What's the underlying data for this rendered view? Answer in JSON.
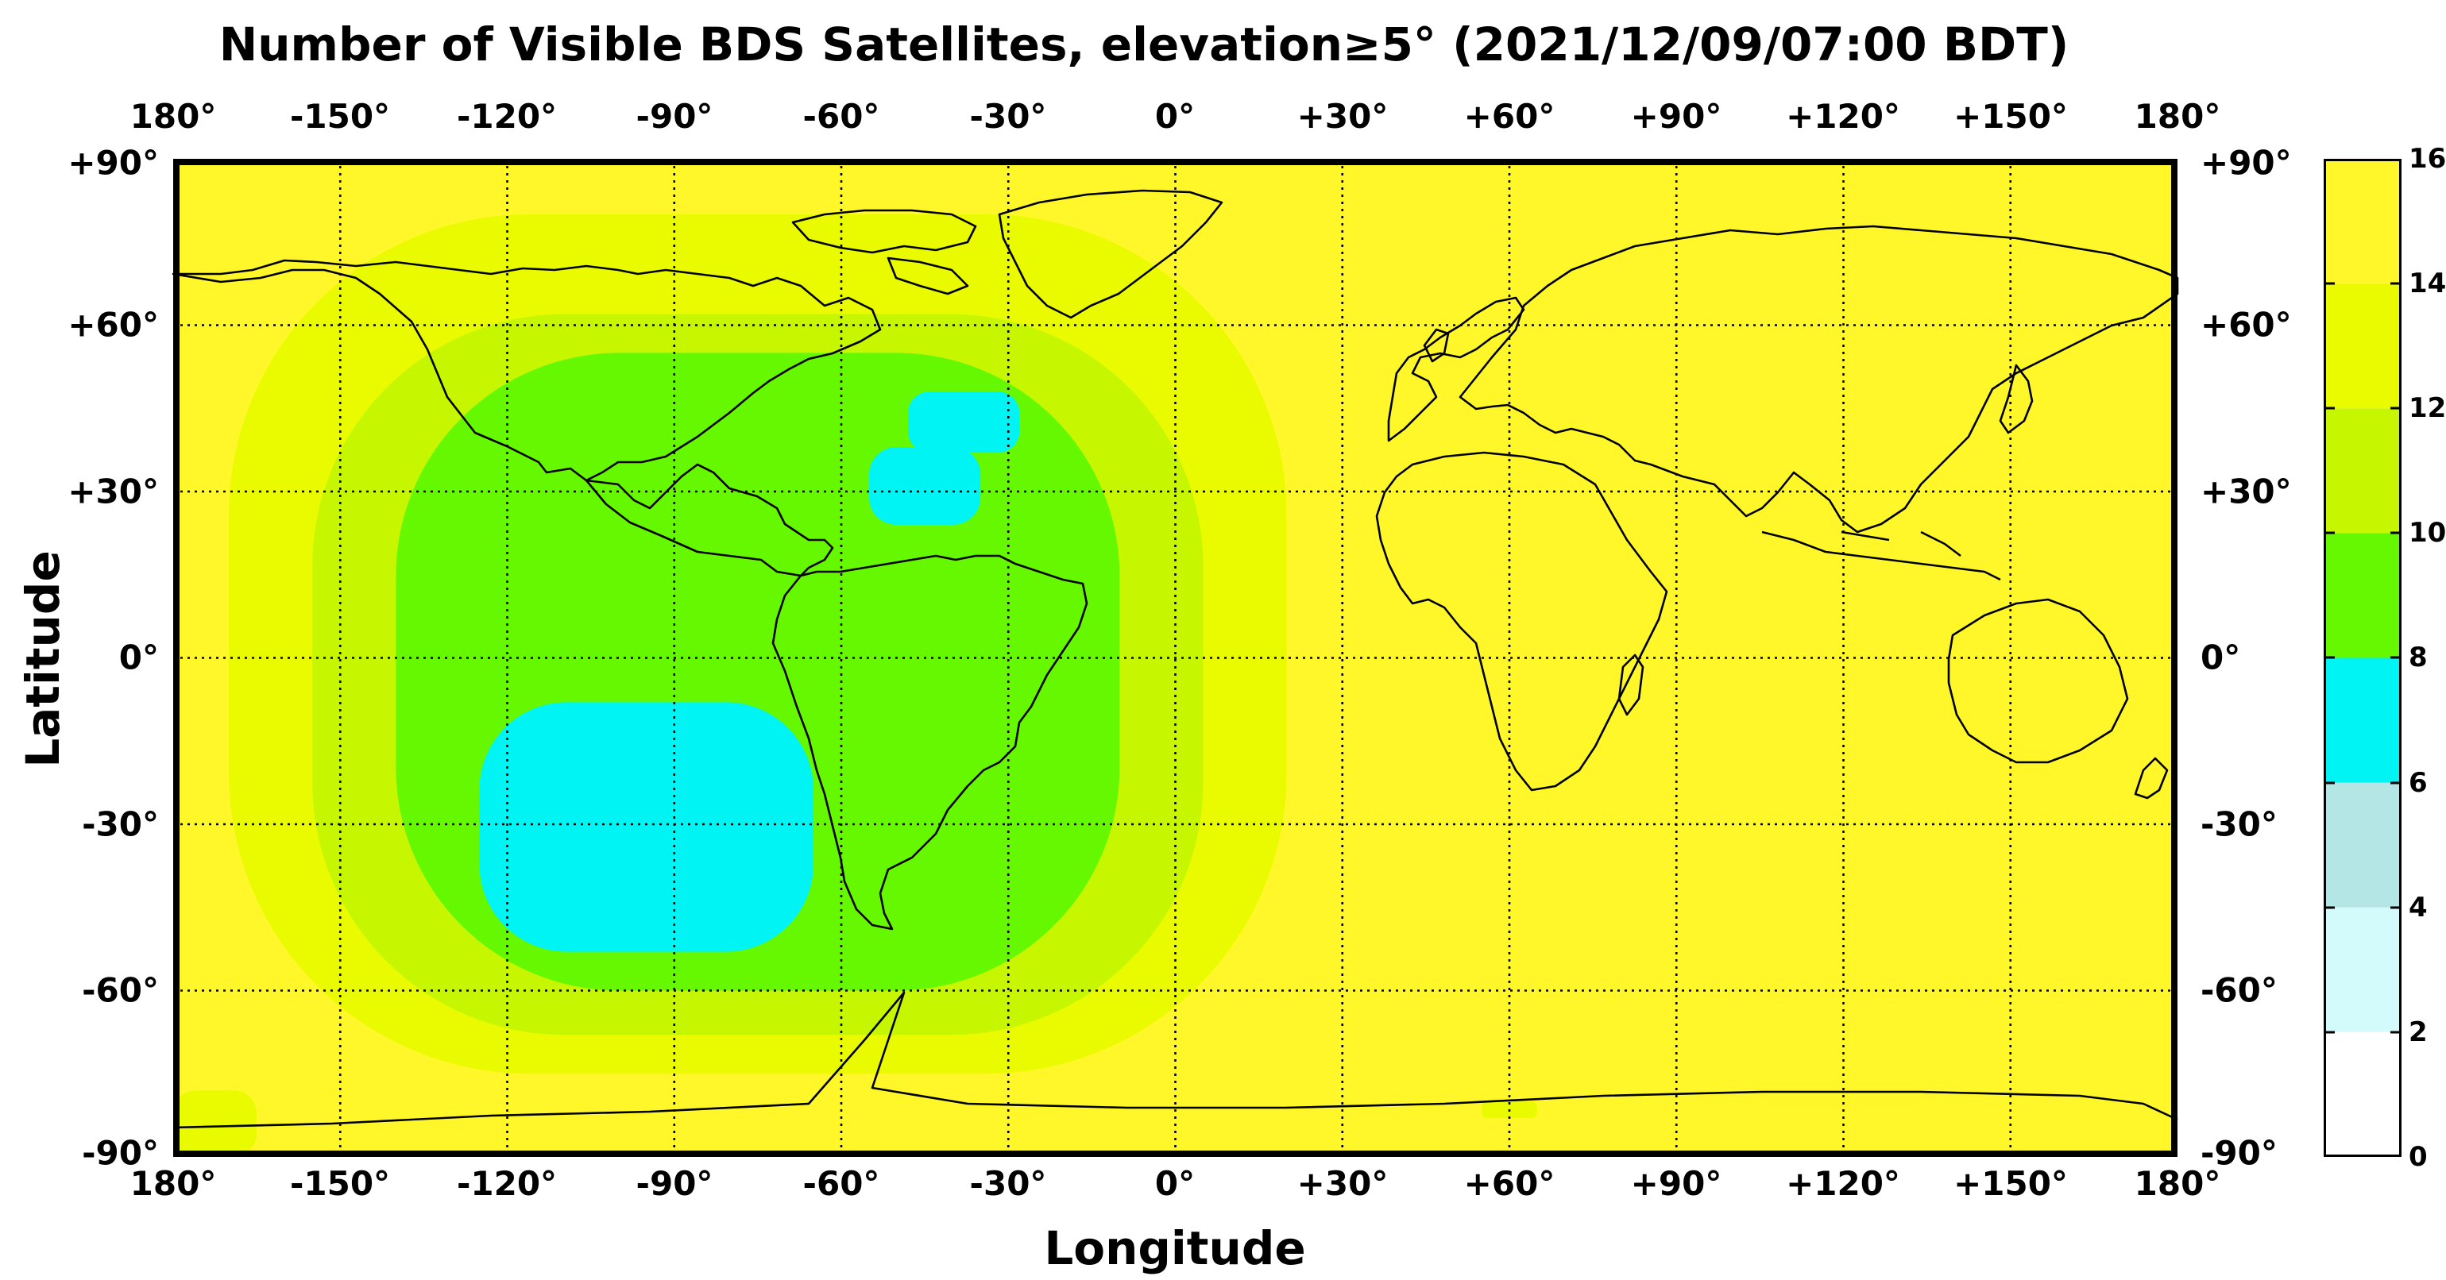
{
  "title": "Number of Visible BDS Satellites, elevation≥5° (2021/12/09/07:00 BDT)",
  "xlabel": "Longitude",
  "ylabel": "Latitude",
  "x_ticks": [
    "180°",
    "-150°",
    "-120°",
    "-90°",
    "-60°",
    "-30°",
    "0°",
    "+30°",
    "+60°",
    "+90°",
    "+120°",
    "+150°",
    "180°"
  ],
  "y_ticks": [
    "+90°",
    "+60°",
    "+30°",
    "0°",
    "-30°",
    "-60°",
    "-90°"
  ],
  "colorbar": {
    "ticks": [
      "16",
      "14",
      "12",
      "10",
      "8",
      "6",
      "4",
      "2",
      "0"
    ],
    "bands": [
      {
        "from": 0,
        "to": 2,
        "color": "#ffffff"
      },
      {
        "from": 2,
        "to": 4,
        "color": "#d4fbfb"
      },
      {
        "from": 4,
        "to": 6,
        "color": "#b4e6e6"
      },
      {
        "from": 6,
        "to": 8,
        "color": "#00f4f4"
      },
      {
        "from": 8,
        "to": 10,
        "color": "#66f800"
      },
      {
        "from": 10,
        "to": 12,
        "color": "#c6f700"
      },
      {
        "from": 12,
        "to": 14,
        "color": "#eafb00"
      },
      {
        "from": 14,
        "to": 16,
        "color": "#fff72a"
      }
    ]
  },
  "chart_data": {
    "type": "heatmap",
    "title": "Number of Visible BDS Satellites, elevation≥5° (2021/12/09/07:00 BDT)",
    "xlabel": "Longitude",
    "ylabel": "Latitude",
    "xlim": [
      -180,
      180
    ],
    "ylim": [
      -90,
      90
    ],
    "grid": true,
    "colorscale_range": [
      0,
      16
    ],
    "background_value": 15,
    "regions": [
      {
        "value": 13,
        "lon": [
          -170,
          20
        ],
        "lat": [
          -75,
          80
        ]
      },
      {
        "value": 13,
        "lon": [
          -180,
          -165
        ],
        "lat": [
          -90,
          -78
        ]
      },
      {
        "value": 11,
        "lon": [
          -155,
          5
        ],
        "lat": [
          -68,
          62
        ]
      },
      {
        "value": 9,
        "lon": [
          -140,
          -10
        ],
        "lat": [
          -60,
          55
        ]
      },
      {
        "value": 7,
        "lon": [
          -125,
          -65
        ],
        "lat": [
          -53,
          -8
        ]
      },
      {
        "value": 7,
        "lon": [
          -55,
          -35
        ],
        "lat": [
          24,
          38
        ]
      },
      {
        "value": 7,
        "lon": [
          -48,
          -28
        ],
        "lat": [
          37,
          48
        ]
      },
      {
        "value": 13,
        "lon": [
          55,
          65
        ],
        "lat": [
          -83,
          -80
        ]
      }
    ]
  }
}
